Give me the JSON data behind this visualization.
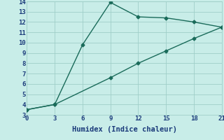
{
  "line1_x": [
    0,
    3,
    6,
    9,
    12,
    15,
    18,
    21
  ],
  "line1_y": [
    3.5,
    4.0,
    9.8,
    13.9,
    12.5,
    12.4,
    12.0,
    11.5
  ],
  "line2_x": [
    0,
    3,
    9,
    12,
    15,
    18,
    21
  ],
  "line2_y": [
    3.5,
    4.0,
    6.6,
    8.0,
    9.2,
    10.4,
    11.5
  ],
  "line_color": "#1a6b5a",
  "bg_color": "#c8ede8",
  "grid_color": "#a0cfc8",
  "xlabel": "Humidex (Indice chaleur)",
  "xlim": [
    0,
    21
  ],
  "ylim": [
    3,
    14
  ],
  "xticks": [
    0,
    3,
    6,
    9,
    12,
    15,
    18,
    21
  ],
  "yticks": [
    3,
    4,
    5,
    6,
    7,
    8,
    9,
    10,
    11,
    12,
    13,
    14
  ],
  "marker": "D",
  "markersize": 2.5,
  "linewidth": 1.0,
  "font_color": "#1a3a7a",
  "font_family": "monospace",
  "font_size_label": 7.5,
  "font_size_ticks": 6.5
}
